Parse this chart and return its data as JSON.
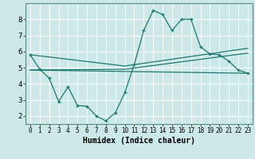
{
  "xlabel": "Humidex (Indice chaleur)",
  "bg_color": "#cce8e8",
  "grid_color": "#ffffff",
  "line_color": "#1a7a6e",
  "xlim": [
    -0.5,
    23.5
  ],
  "ylim": [
    1.5,
    9.0
  ],
  "yticks": [
    2,
    3,
    4,
    5,
    6,
    7,
    8
  ],
  "xticks": [
    0,
    1,
    2,
    3,
    4,
    5,
    6,
    7,
    8,
    9,
    10,
    11,
    12,
    13,
    14,
    15,
    16,
    17,
    18,
    19,
    20,
    21,
    22,
    23
  ],
  "main_x": [
    0,
    1,
    2,
    3,
    4,
    5,
    6,
    7,
    8,
    9,
    10,
    11,
    12,
    13,
    14,
    15,
    16,
    17,
    18,
    19,
    20,
    21,
    22,
    23
  ],
  "main_y": [
    5.8,
    4.9,
    4.35,
    2.9,
    3.8,
    2.65,
    2.6,
    2.0,
    1.7,
    2.2,
    3.45,
    5.2,
    7.3,
    8.55,
    8.3,
    7.3,
    8.0,
    8.0,
    6.3,
    5.85,
    5.8,
    5.4,
    4.85,
    4.65
  ],
  "line1_x": [
    0,
    23
  ],
  "line1_y": [
    4.85,
    4.65
  ],
  "line2_x": [
    0,
    10,
    23
  ],
  "line2_y": [
    4.85,
    4.9,
    5.9
  ],
  "line3_x": [
    0,
    10,
    23
  ],
  "line3_y": [
    5.8,
    5.1,
    6.2
  ]
}
